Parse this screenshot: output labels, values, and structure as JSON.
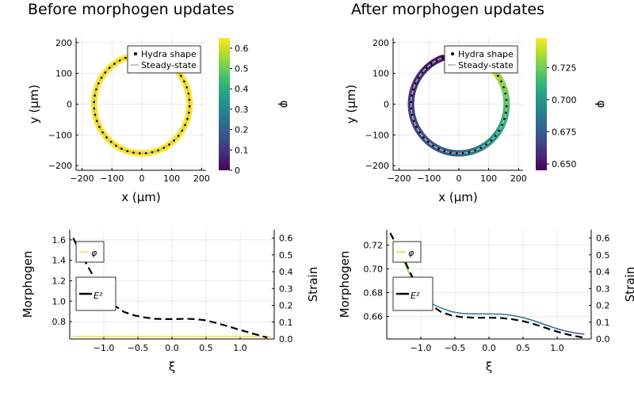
{
  "chart_data": [
    {
      "type": "scatter",
      "title": "Before morphogen updates",
      "xlabel": "x (μm)",
      "ylabel": "y (μm)",
      "xlim": [
        -220,
        215
      ],
      "ylim": [
        -215,
        215
      ],
      "xticks": [
        "−200",
        "−100",
        "0",
        "100",
        "200"
      ],
      "xtick_values": [
        -200,
        -100,
        0,
        100,
        200
      ],
      "yticks": [
        "−200",
        "−100",
        "0",
        "100",
        "200"
      ],
      "ytick_values": [
        -200,
        -100,
        0,
        100,
        200
      ],
      "grid": true,
      "legend_position": "top-right",
      "series": [
        {
          "name": "Hydra shape",
          "marker": "dot",
          "color": "#000000",
          "shape": {
            "center": [
              0,
              0
            ],
            "radius": 160,
            "open_from_deg": 50,
            "open_to_deg": 110
          }
        },
        {
          "name": "Steady-state",
          "marker": "line",
          "color": "#b0b0b0",
          "shape": {
            "center": [
              0,
              0
            ],
            "radius": 160,
            "open_from_deg": 50,
            "open_to_deg": 110
          }
        }
      ],
      "colorbar": {
        "label": "φ",
        "range": [
          0,
          0.65
        ],
        "ticks": [
          "0",
          "0.1",
          "0.2",
          "0.3",
          "0.4",
          "0.5",
          "0.6"
        ],
        "tick_values": [
          0,
          0.1,
          0.2,
          0.3,
          0.4,
          0.5,
          0.6
        ],
        "colormap": "viridis"
      },
      "band_value": 0.65
    },
    {
      "type": "scatter",
      "title": "After morphogen updates",
      "xlabel": "x (μm)",
      "ylabel": "y (μm)",
      "xlim": [
        -220,
        215
      ],
      "ylim": [
        -215,
        215
      ],
      "xticks": [
        "−200",
        "−100",
        "0",
        "100",
        "200"
      ],
      "xtick_values": [
        -200,
        -100,
        0,
        100,
        200
      ],
      "yticks": [
        "−200",
        "−100",
        "0",
        "100",
        "200"
      ],
      "ytick_values": [
        -200,
        -100,
        0,
        100,
        200
      ],
      "grid": true,
      "legend_position": "top-right",
      "series": [
        {
          "name": "Hydra shape",
          "marker": "dot",
          "color": "#000000",
          "shape": {
            "center": [
              0,
              0
            ],
            "radius": 160,
            "open_from_deg": 50,
            "open_to_deg": 110
          }
        },
        {
          "name": "Steady-state",
          "marker": "line",
          "color": "#b0b0b0",
          "shape": {
            "center": [
              0,
              0
            ],
            "radius": 160,
            "open_from_deg": 50,
            "open_to_deg": 110
          }
        }
      ],
      "colorbar": {
        "label": "φ",
        "range": [
          0.645,
          0.748
        ],
        "ticks": [
          "0.650",
          "0.675",
          "0.700",
          "0.725"
        ],
        "tick_values": [
          0.65,
          0.675,
          0.7,
          0.725
        ],
        "colormap": "viridis"
      }
    },
    {
      "type": "line",
      "xlabel": "ξ",
      "ylabel": "Morphogen",
      "ylabel_right": "Strain",
      "xlim": [
        -1.5,
        1.5
      ],
      "ylim": [
        0.63,
        1.7
      ],
      "ylim_right": [
        0,
        0.65
      ],
      "xticks": [
        "−1.0",
        "−0.5",
        "0.0",
        "0.5",
        "1.0"
      ],
      "xtick_values": [
        -1,
        -0.5,
        0,
        0.5,
        1
      ],
      "yticks": [
        "0.8",
        "1.0",
        "1.2",
        "1.4",
        "1.6"
      ],
      "ytick_values": [
        0.8,
        1.0,
        1.2,
        1.4,
        1.6
      ],
      "yticks_right": [
        "0.0",
        "0.1",
        "0.2",
        "0.3",
        "0.4",
        "0.5",
        "0.6"
      ],
      "ytick_values_right": [
        0,
        0.1,
        0.2,
        0.3,
        0.4,
        0.5,
        0.6
      ],
      "grid": true,
      "series": [
        {
          "name": "φ",
          "axis": "left",
          "color": "#f2e244",
          "style": "solid",
          "x": [
            -1.45,
            1.45
          ],
          "y": [
            0.655,
            0.655
          ]
        },
        {
          "name": "E²",
          "axis": "right",
          "color": "#000000",
          "style": "dashed",
          "x": [
            -1.45,
            -1.3,
            -1.15,
            -1.0,
            -0.85,
            -0.7,
            -0.55,
            -0.4,
            -0.25,
            -0.1,
            0.05,
            0.2,
            0.35,
            0.5,
            0.65,
            0.8,
            0.95,
            1.1,
            1.25,
            1.4
          ],
          "y": [
            0.6,
            0.48,
            0.37,
            0.27,
            0.2,
            0.16,
            0.14,
            0.128,
            0.12,
            0.118,
            0.118,
            0.12,
            0.118,
            0.11,
            0.095,
            0.078,
            0.06,
            0.042,
            0.025,
            0.008
          ]
        }
      ]
    },
    {
      "type": "line",
      "xlabel": "ξ",
      "ylabel": "Morphogen",
      "ylabel_right": "Strain",
      "xlim": [
        -1.5,
        1.5
      ],
      "ylim": [
        0.641,
        0.733
      ],
      "ylim_right": [
        0,
        0.65
      ],
      "xticks": [
        "−1.0",
        "−0.5",
        "0.0",
        "0.5",
        "1.0"
      ],
      "xtick_values": [
        -1,
        -0.5,
        0,
        0.5,
        1
      ],
      "yticks": [
        "0.66",
        "0.68",
        "0.70",
        "0.72"
      ],
      "ytick_values": [
        0.66,
        0.68,
        0.7,
        0.72
      ],
      "yticks_right": [
        "0.0",
        "0.1",
        "0.2",
        "0.3",
        "0.4",
        "0.5",
        "0.6"
      ],
      "ytick_values_right": [
        0,
        0.1,
        0.2,
        0.3,
        0.4,
        0.5,
        0.6
      ],
      "grid": true,
      "series": [
        {
          "name": "φ",
          "axis": "left",
          "color": "viridis",
          "style": "solid",
          "x": [
            -1.45,
            -1.3,
            -1.15,
            -1.0,
            -0.85,
            -0.7,
            -0.55,
            -0.4,
            -0.25,
            -0.1,
            0.05,
            0.2,
            0.35,
            0.5,
            0.65,
            0.8,
            0.95,
            1.1,
            1.25,
            1.4
          ],
          "y": [
            0.73,
            0.712,
            0.694,
            0.679,
            0.671,
            0.667,
            0.664,
            0.6625,
            0.6622,
            0.6621,
            0.6621,
            0.6618,
            0.6608,
            0.659,
            0.6565,
            0.6535,
            0.6505,
            0.648,
            0.6462,
            0.645
          ]
        },
        {
          "name": "E²",
          "axis": "right",
          "color": "#000000",
          "style": "dashed",
          "x": [
            -1.45,
            -1.3,
            -1.15,
            -1.0,
            -0.85,
            -0.7,
            -0.55,
            -0.4,
            -0.25,
            -0.1,
            0.05,
            0.2,
            0.35,
            0.5,
            0.65,
            0.8,
            0.95,
            1.1,
            1.25,
            1.4
          ],
          "y": [
            0.63,
            0.52,
            0.39,
            0.27,
            0.2,
            0.16,
            0.14,
            0.13,
            0.127,
            0.126,
            0.126,
            0.124,
            0.117,
            0.106,
            0.09,
            0.07,
            0.05,
            0.032,
            0.018,
            0.008
          ]
        }
      ]
    }
  ]
}
